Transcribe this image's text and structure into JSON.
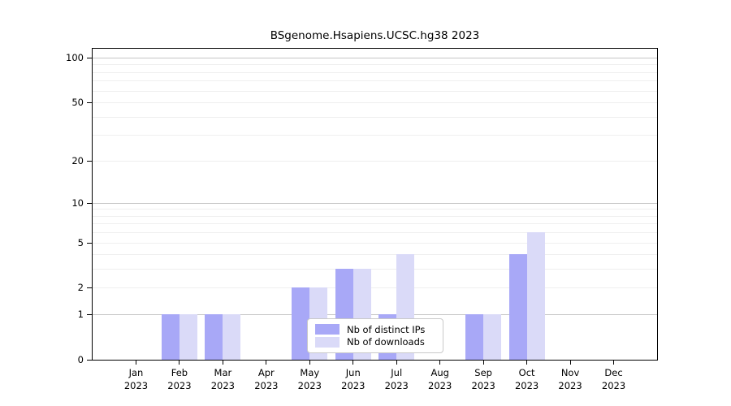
{
  "chart_data": {
    "type": "bar",
    "title": "BSgenome.Hsapiens.UCSC.hg38 2023",
    "categories": [
      {
        "month": "Jan",
        "year": "2023"
      },
      {
        "month": "Feb",
        "year": "2023"
      },
      {
        "month": "Mar",
        "year": "2023"
      },
      {
        "month": "Apr",
        "year": "2023"
      },
      {
        "month": "May",
        "year": "2023"
      },
      {
        "month": "Jun",
        "year": "2023"
      },
      {
        "month": "Jul",
        "year": "2023"
      },
      {
        "month": "Aug",
        "year": "2023"
      },
      {
        "month": "Sep",
        "year": "2023"
      },
      {
        "month": "Oct",
        "year": "2023"
      },
      {
        "month": "Nov",
        "year": "2023"
      },
      {
        "month": "Dec",
        "year": "2023"
      }
    ],
    "series": [
      {
        "name": "Nb of distinct IPs",
        "color": "#a8a8f7",
        "values": [
          0,
          1,
          1,
          0,
          2,
          3,
          1,
          0,
          1,
          4,
          0,
          0
        ]
      },
      {
        "name": "Nb of downloads",
        "color": "#dadaf8",
        "values": [
          0,
          1,
          1,
          0,
          2,
          3,
          4,
          0,
          1,
          6,
          0,
          0
        ]
      }
    ],
    "y_scale": "log1p",
    "y_top_value": 114.8,
    "ylim": [
      0,
      114.8
    ],
    "y_ticks": [
      0,
      1,
      2,
      5,
      10,
      20,
      50,
      100
    ],
    "gridline_values": [
      1,
      2,
      3,
      4,
      5,
      6,
      7,
      8,
      9,
      10,
      20,
      30,
      40,
      50,
      60,
      70,
      80,
      90,
      100
    ],
    "grid": {
      "major_values": [
        1,
        10,
        100
      ],
      "major_color": "#c6c6c6",
      "minor_color": "#efefef"
    },
    "legend_position": "lower center",
    "xlabel": "",
    "ylabel": ""
  },
  "colors": {
    "axis": "#000000",
    "background": "#ffffff",
    "legend_border": "#c9c9c9"
  }
}
